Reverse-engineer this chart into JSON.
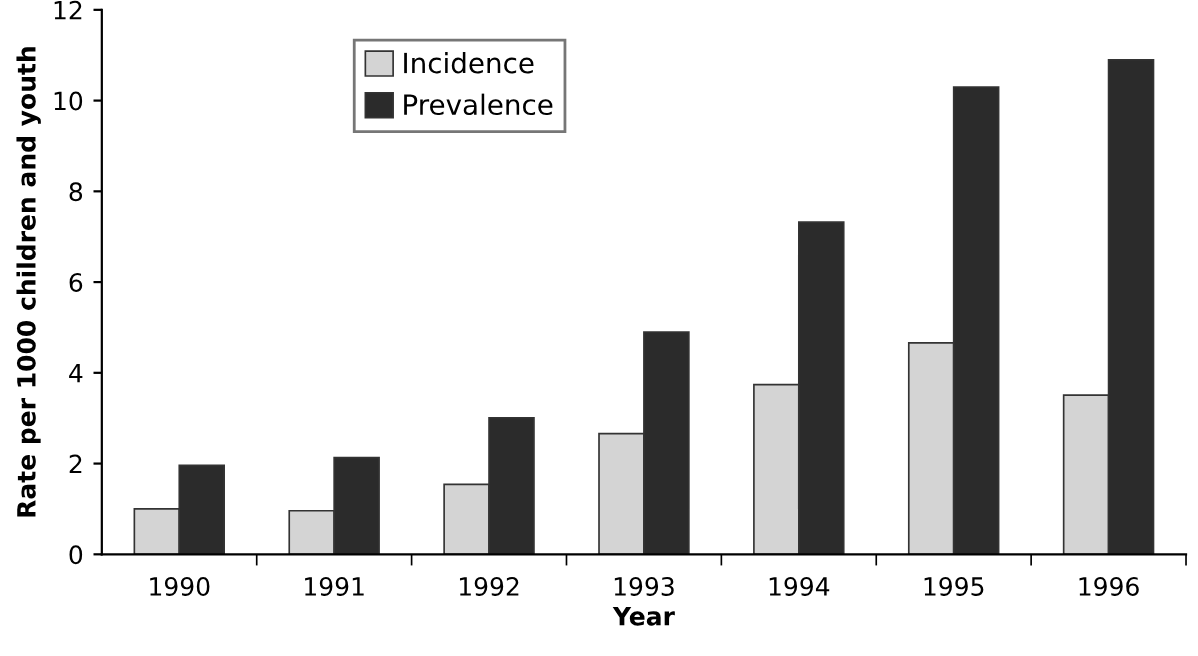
{
  "chart_data": {
    "type": "bar",
    "xlabel": "Year",
    "ylabel": "Rate per 1000 children and youth",
    "categories": [
      "1990",
      "1991",
      "1992",
      "1993",
      "1994",
      "1995",
      "1996"
    ],
    "series": [
      {
        "name": "Incidence",
        "color": "#d4d4d4",
        "values": [
          1.0,
          0.96,
          1.54,
          2.66,
          3.74,
          4.66,
          3.51
        ]
      },
      {
        "name": "Prevalence",
        "color": "#2b2b2b",
        "values": [
          1.96,
          2.13,
          3.01,
          4.9,
          7.32,
          10.3,
          10.9
        ]
      }
    ],
    "ylim": [
      0,
      12
    ],
    "yticks": [
      0,
      2,
      4,
      6,
      8,
      10,
      12
    ],
    "grid": false,
    "legend": "top left"
  }
}
